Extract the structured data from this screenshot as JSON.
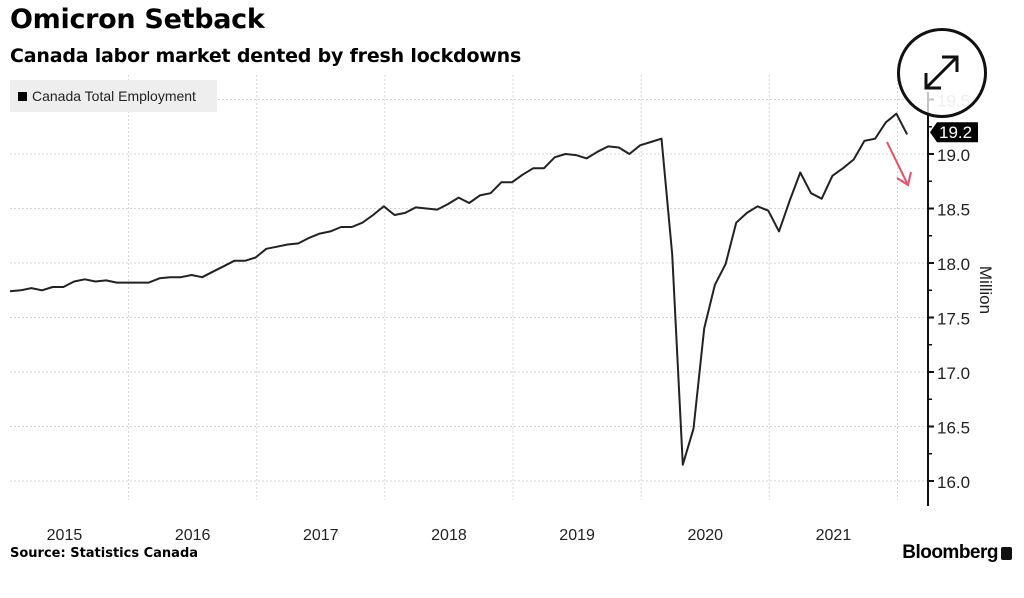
{
  "chart_data": {
    "type": "line",
    "title": "Omicron Setback",
    "subtitle": "Canada labor market dented by fresh lockdowns",
    "legend": [
      "Canada Total Employment"
    ],
    "legend_position": "top-left",
    "ylabel": "Million",
    "ylim": [
      16.0,
      19.5
    ],
    "yticks": [
      "16.0",
      "16.5",
      "17.0",
      "17.5",
      "18.0",
      "18.5",
      "19.0",
      "19.5"
    ],
    "xticks": [
      "2015",
      "2016",
      "2017",
      "2018",
      "2019",
      "2020",
      "2021"
    ],
    "x_start": "2015-01",
    "x_end": "2022-01",
    "frequency": "monthly",
    "grid": true,
    "last_value_label": "19.2",
    "series": [
      {
        "name": "Canada Total Employment",
        "color": "#222222",
        "values": [
          17.74,
          17.75,
          17.77,
          17.75,
          17.78,
          17.78,
          17.83,
          17.85,
          17.83,
          17.84,
          17.82,
          17.82,
          17.82,
          17.82,
          17.86,
          17.87,
          17.87,
          17.89,
          17.87,
          17.92,
          17.97,
          18.02,
          18.02,
          18.05,
          18.13,
          18.15,
          18.17,
          18.18,
          18.23,
          18.27,
          18.29,
          18.33,
          18.33,
          18.37,
          18.44,
          18.52,
          18.44,
          18.46,
          18.51,
          18.5,
          18.49,
          18.54,
          18.6,
          18.55,
          18.62,
          18.64,
          18.74,
          18.74,
          18.81,
          18.87,
          18.87,
          18.97,
          19.0,
          18.99,
          18.96,
          19.02,
          19.07,
          19.06,
          19.0,
          19.08,
          19.11,
          19.14,
          18.08,
          16.15,
          16.48,
          17.4,
          17.8,
          17.99,
          18.37,
          18.46,
          18.52,
          18.48,
          18.29,
          18.57,
          18.83,
          18.64,
          18.59,
          18.8,
          18.87,
          18.95,
          19.12,
          19.14,
          19.29,
          19.37,
          19.18
        ]
      }
    ],
    "annotation": {
      "type": "arrow",
      "direction": "down",
      "color": "#e8506a"
    }
  },
  "footer": {
    "source": "Source: Statistics Canada",
    "brand": "Bloomberg"
  }
}
